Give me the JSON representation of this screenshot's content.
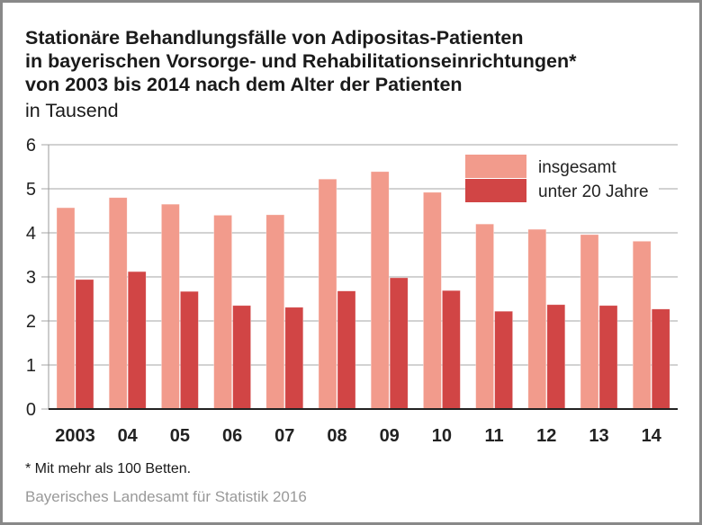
{
  "chart_data": {
    "type": "bar",
    "title": "Stationäre Behandlungsfälle von Adipositas-Patienten in bayerischen Vorsorge- und Rehabilitationseinrichtungen* von 2003 bis 2014 nach dem Alter der Patienten",
    "title_lines": [
      "Stationäre Behandlungsfälle von Adipositas-Patienten",
      "in bayerischen Vorsorge- und Rehabilitationseinrichtungen*",
      "von 2003 bis 2014 nach dem Alter der Patienten"
    ],
    "subtitle": "in Tausend",
    "xlabel": "",
    "ylabel": "",
    "categories": [
      "2003",
      "04",
      "05",
      "06",
      "07",
      "08",
      "09",
      "10",
      "11",
      "12",
      "13",
      "14"
    ],
    "series": [
      {
        "name": "insgesamt",
        "color": "#f29b8c",
        "values": [
          4.57,
          4.8,
          4.65,
          4.4,
          4.41,
          5.22,
          5.39,
          4.92,
          4.2,
          4.08,
          3.96,
          3.81
        ]
      },
      {
        "name": "unter 20 Jahre",
        "color": "#d14545",
        "values": [
          2.94,
          3.12,
          2.67,
          2.35,
          2.31,
          2.68,
          2.98,
          2.69,
          2.22,
          2.37,
          2.35,
          2.27
        ]
      }
    ],
    "ylim": [
      0,
      6
    ],
    "yticks": [
      0,
      1,
      2,
      3,
      4,
      5,
      6
    ],
    "grid": true,
    "legend_position": "top-right"
  },
  "footnote": "*  Mit mehr als 100 Betten.",
  "source": "Bayerisches Landesamt für Statistik 2016",
  "colors": {
    "gridline": "#c4c4c4",
    "axis": "#222222",
    "frame": "#888888"
  }
}
